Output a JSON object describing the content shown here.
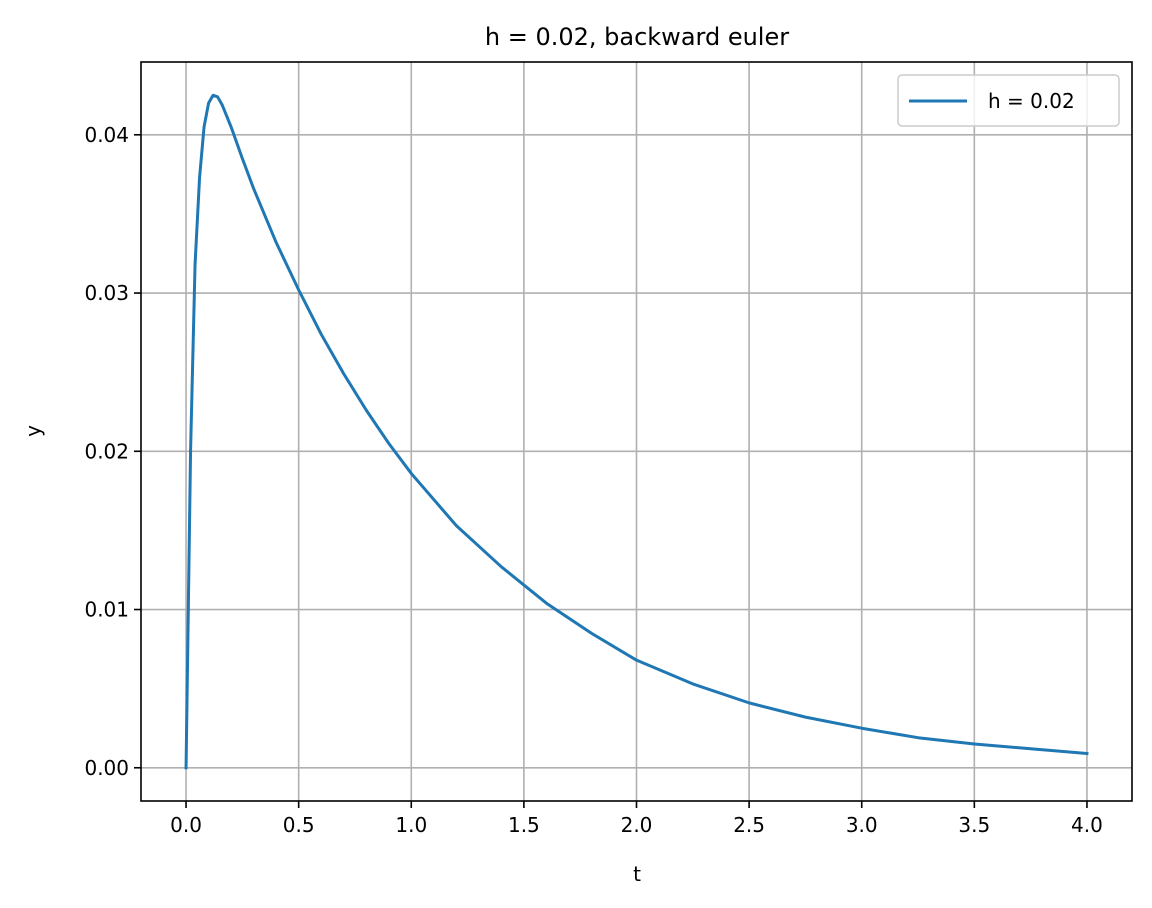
{
  "chart_data": {
    "type": "line",
    "title": "h = 0.02, backward euler",
    "xlabel": "t",
    "ylabel": "y",
    "xlim": [
      -0.2,
      4.2
    ],
    "ylim": [
      -0.0021,
      0.0446
    ],
    "xticks": [
      0.0,
      0.5,
      1.0,
      1.5,
      2.0,
      2.5,
      3.0,
      3.5,
      4.0
    ],
    "xtick_labels": [
      "0.0",
      "0.5",
      "1.0",
      "1.5",
      "2.0",
      "2.5",
      "3.0",
      "3.5",
      "4.0"
    ],
    "yticks": [
      0.0,
      0.01,
      0.02,
      0.03,
      0.04
    ],
    "ytick_labels": [
      "0.00",
      "0.01",
      "0.02",
      "0.03",
      "0.04"
    ],
    "grid": true,
    "legend_position": "top-right",
    "series": [
      {
        "name": "h = 0.02",
        "color": "#1f77b4",
        "x": [
          0.0,
          0.02,
          0.04,
          0.06,
          0.08,
          0.1,
          0.12,
          0.14,
          0.16,
          0.18,
          0.2,
          0.25,
          0.3,
          0.4,
          0.5,
          0.6,
          0.7,
          0.8,
          0.9,
          1.0,
          1.2,
          1.4,
          1.6,
          1.8,
          2.0,
          2.25,
          2.5,
          2.75,
          3.0,
          3.25,
          3.5,
          3.75,
          4.0
        ],
        "y": [
          0.0,
          0.02,
          0.0318,
          0.0373,
          0.0405,
          0.042,
          0.0425,
          0.0424,
          0.0419,
          0.0412,
          0.0405,
          0.0385,
          0.0366,
          0.0332,
          0.0302,
          0.0274,
          0.0249,
          0.0226,
          0.0205,
          0.0186,
          0.0153,
          0.0127,
          0.0104,
          0.0085,
          0.0068,
          0.0053,
          0.0041,
          0.0032,
          0.0025,
          0.0019,
          0.0015,
          0.0012,
          0.0009
        ]
      }
    ]
  }
}
